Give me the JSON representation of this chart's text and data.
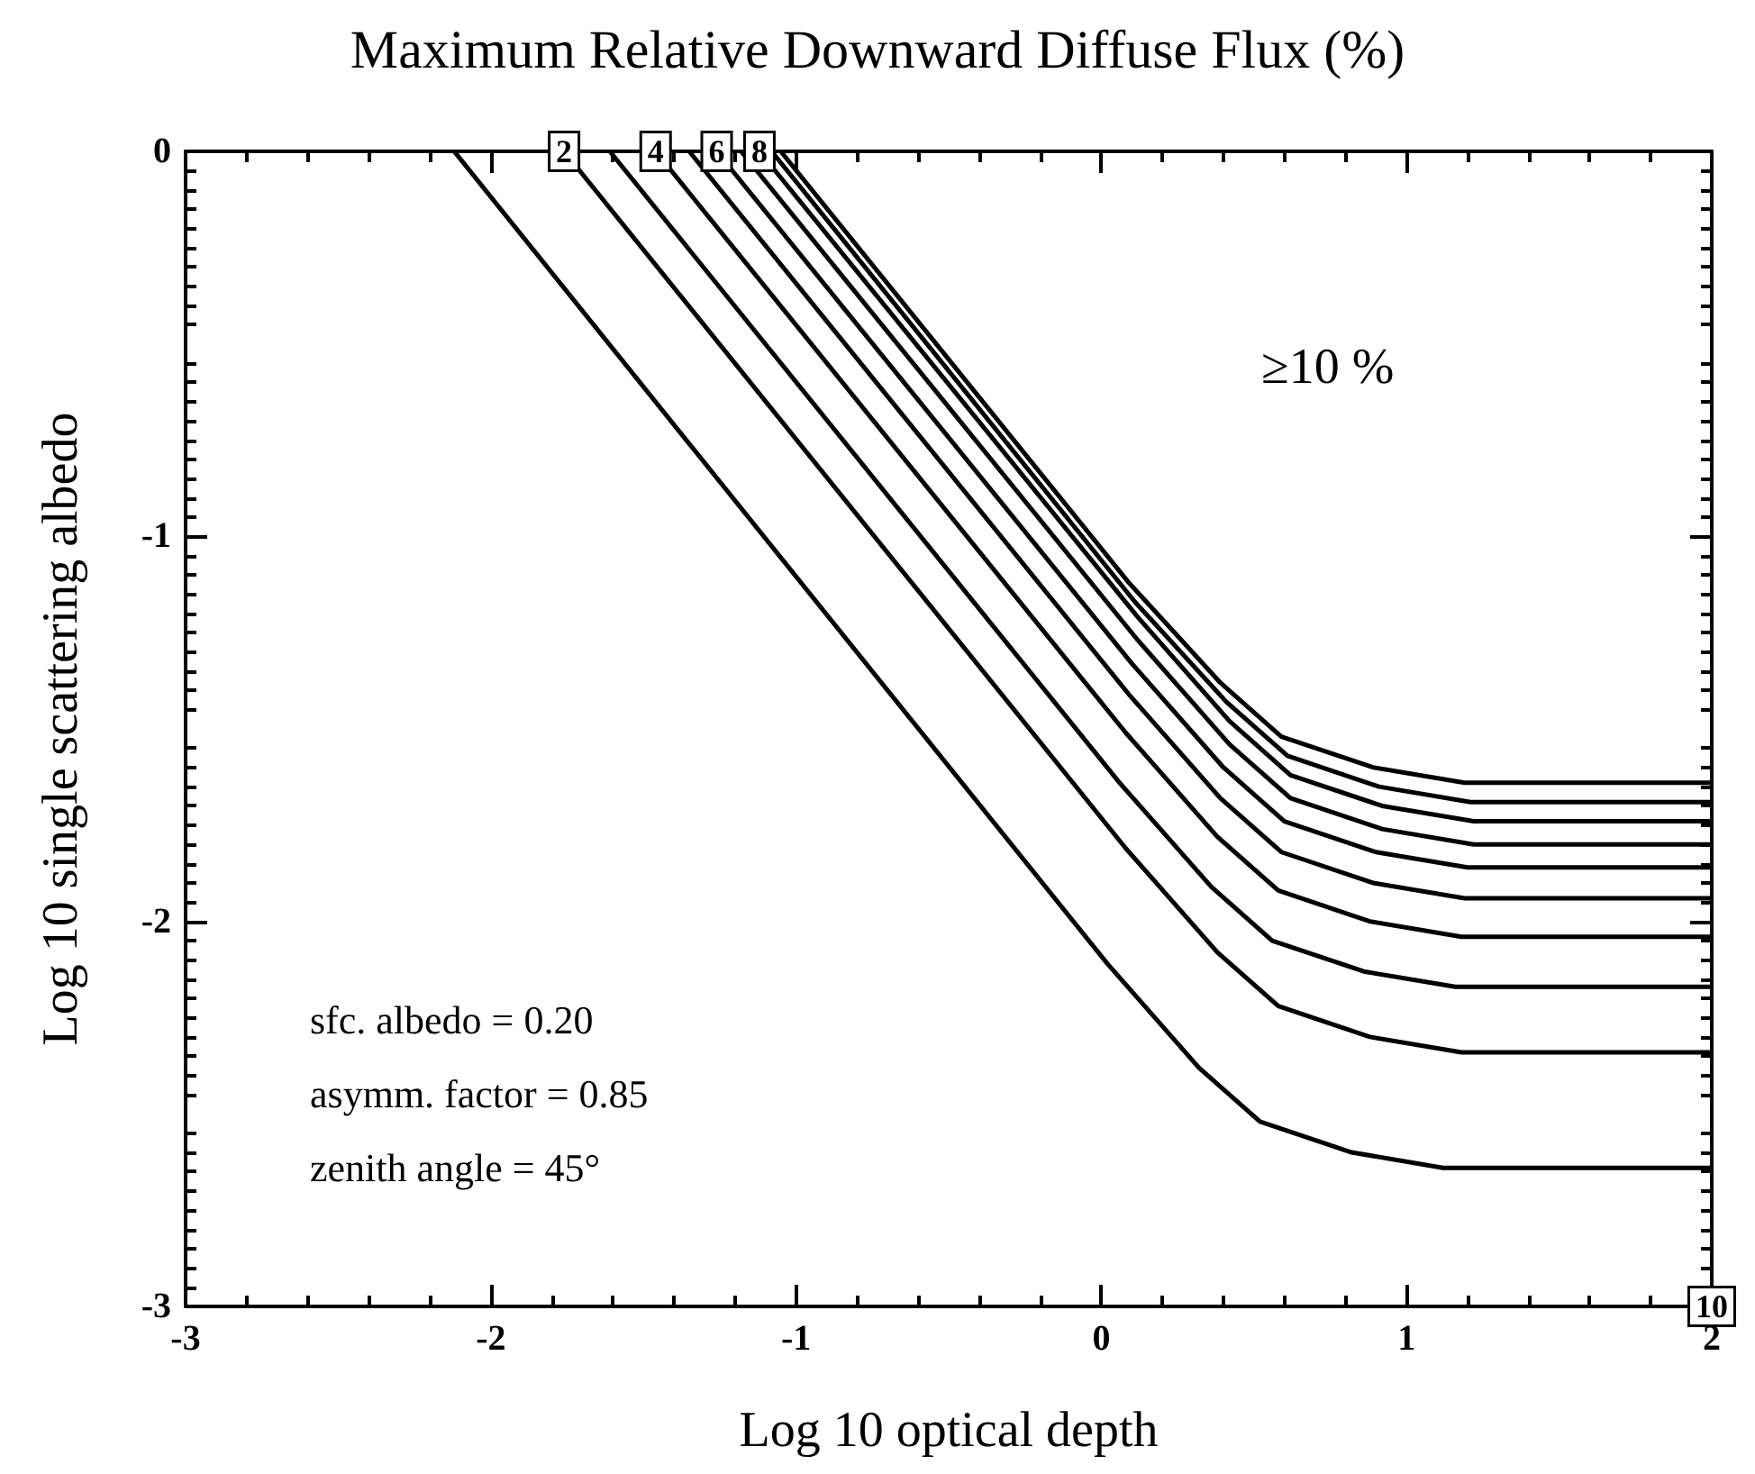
{
  "chart_data": {
    "type": "line",
    "title": "Maximum Relative Downward Diffuse Flux (%)",
    "xlabel": "Log 10 optical depth",
    "ylabel": "Log 10 single scattering albedo",
    "xlim": [
      -3,
      2
    ],
    "xticks": [
      -3,
      -2,
      -1,
      0,
      1,
      2
    ],
    "ylim": [
      -3,
      0
    ],
    "yticks": [
      -3,
      -2,
      -1,
      0
    ],
    "grid": false,
    "marker": "none",
    "line_style": "solid",
    "series": [
      {
        "color": "#000000",
        "x": [
          -2.12,
          0.02,
          0.32,
          0.52,
          0.82,
          1.12,
          2
        ],
        "values": [
          0,
          -2.11,
          -2.38,
          -2.52,
          -2.6,
          -2.64,
          -2.64
        ]
      },
      {
        "color": "#000000",
        "x": [
          -1.76,
          0.08,
          0.38,
          0.58,
          0.88,
          1.18,
          2
        ],
        "values": [
          0,
          -1.81,
          -2.08,
          -2.22,
          -2.3,
          -2.34,
          -2.34
        ]
      },
      {
        "color": "#000000",
        "x": [
          -1.61,
          0.06,
          0.36,
          0.56,
          0.86,
          1.16,
          2
        ],
        "values": [
          0,
          -1.64,
          -1.91,
          -2.05,
          -2.13,
          -2.17,
          -2.17
        ]
      },
      {
        "color": "#000000",
        "x": [
          -1.46,
          0.08,
          0.38,
          0.58,
          0.88,
          1.18,
          2
        ],
        "values": [
          0,
          -1.51,
          -1.78,
          -1.92,
          -2.0,
          -2.04,
          -2.04
        ]
      },
      {
        "color": "#000000",
        "x": [
          -1.35,
          0.09,
          0.39,
          0.59,
          0.89,
          1.19,
          2
        ],
        "values": [
          0,
          -1.41,
          -1.68,
          -1.82,
          -1.9,
          -1.94,
          -1.94
        ]
      },
      {
        "color": "#000000",
        "x": [
          -1.26,
          0.1,
          0.4,
          0.6,
          0.9,
          1.2,
          2
        ],
        "values": [
          0,
          -1.33,
          -1.6,
          -1.74,
          -1.82,
          -1.86,
          -1.86
        ]
      },
      {
        "color": "#000000",
        "x": [
          -1.18,
          0.12,
          0.42,
          0.62,
          0.92,
          1.22,
          2
        ],
        "values": [
          0,
          -1.27,
          -1.54,
          -1.68,
          -1.76,
          -1.8,
          -1.8
        ]
      },
      {
        "color": "#000000",
        "x": [
          -1.12,
          0.12,
          0.42,
          0.62,
          0.92,
          1.22,
          2
        ],
        "values": [
          0,
          -1.21,
          -1.48,
          -1.62,
          -1.7,
          -1.74,
          -1.74
        ]
      },
      {
        "color": "#000000",
        "x": [
          -1.08,
          0.11,
          0.41,
          0.61,
          0.91,
          1.21,
          2
        ],
        "values": [
          0,
          -1.17,
          -1.43,
          -1.57,
          -1.65,
          -1.69,
          -1.69
        ]
      },
      {
        "color": "#000000",
        "x": [
          -1.05,
          0.09,
          0.39,
          0.59,
          0.89,
          1.19,
          2
        ],
        "values": [
          0,
          -1.12,
          -1.38,
          -1.52,
          -1.6,
          -1.64,
          -1.64
        ]
      }
    ],
    "annotations": [
      {
        "text": "2",
        "x": -1.76,
        "y": 0
      },
      {
        "text": "4",
        "x": -1.46,
        "y": 0
      },
      {
        "text": "6",
        "x": -1.26,
        "y": 0
      },
      {
        "text": "8",
        "x": -1.12,
        "y": 0
      },
      {
        "text": "10",
        "x": 2,
        "y": -3
      },
      "≥10 %",
      "sfc. albedo = 0.20",
      "asymm. factor = 0.85",
      "zenith angle = 45°"
    ]
  }
}
